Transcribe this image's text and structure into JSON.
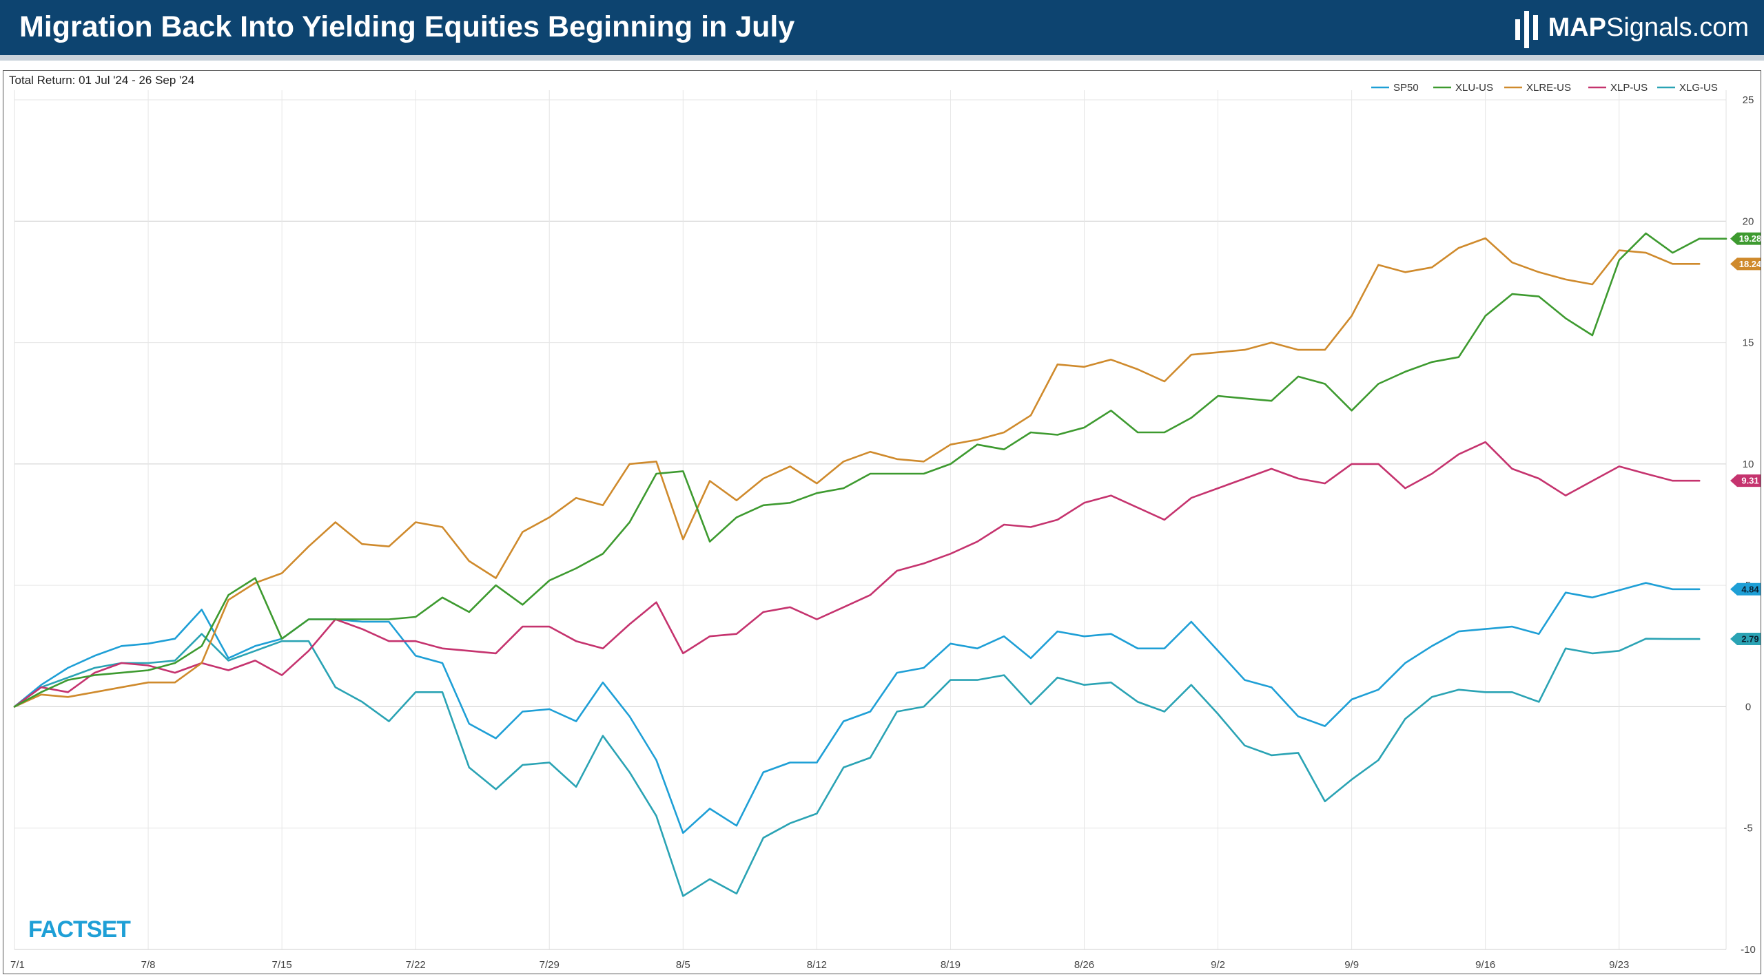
{
  "header": {
    "title": "Migration Back Into Yielding Equities Beginning in July",
    "brand_bold": "MAP",
    "brand_rest": "Signals.com"
  },
  "colors": {
    "header_bg": "#0d4470",
    "SP50": "#1e9fd6",
    "XLU-US": "#3d9a2f",
    "XLRE-US": "#cf8a2c",
    "XLP-US": "#c5336e",
    "XLG-US": "#2aa3b4"
  },
  "watermark": "FACTSET",
  "chart_data": {
    "type": "line",
    "subtitle": "Total Return: 01 Jul '24 - 26 Sep '24",
    "ylim": [
      -10,
      25
    ],
    "yticks": [
      25,
      20,
      15,
      10,
      5,
      0,
      -5,
      -10
    ],
    "xlim": [
      0,
      64
    ],
    "xtick_labels": [
      "7/1",
      "7/8",
      "7/15",
      "7/22",
      "7/29",
      "8/5",
      "8/12",
      "8/19",
      "8/26",
      "9/2",
      "9/9",
      "9/16",
      "9/23"
    ],
    "xtick_index": [
      0,
      5,
      10,
      15,
      20,
      25,
      30,
      35,
      40,
      45,
      50,
      55,
      60
    ],
    "legend_position": "top-right",
    "grid": true,
    "series": [
      {
        "name": "SP50",
        "color": "#1e9fd6",
        "last_label": "4.84",
        "values": [
          0,
          0.9,
          1.6,
          2.1,
          2.5,
          2.6,
          2.8,
          4.0,
          2.0,
          2.5,
          2.8,
          3.6,
          3.6,
          3.5,
          3.5,
          2.1,
          1.8,
          -0.7,
          -1.3,
          -0.2,
          -0.1,
          -0.6,
          1.0,
          -0.4,
          -2.2,
          -5.2,
          -4.2,
          -4.9,
          -2.7,
          -2.3,
          -2.3,
          -0.6,
          -0.2,
          1.4,
          1.6,
          2.6,
          2.4,
          2.9,
          2.0,
          3.1,
          2.9,
          3.0,
          2.4,
          2.4,
          3.5,
          2.3,
          1.1,
          0.8,
          -0.4,
          -0.8,
          0.3,
          0.7,
          1.8,
          2.5,
          3.1,
          3.2,
          3.3,
          3.0,
          4.7,
          4.5,
          4.8,
          5.1,
          4.84,
          4.84
        ]
      },
      {
        "name": "XLU-US",
        "color": "#3d9a2f",
        "last_label": "19.28",
        "values": [
          0,
          0.6,
          1.1,
          1.3,
          1.4,
          1.5,
          1.8,
          2.5,
          4.6,
          5.3,
          2.8,
          3.6,
          3.6,
          3.6,
          3.6,
          3.7,
          4.5,
          3.9,
          5.0,
          4.2,
          5.2,
          5.7,
          6.3,
          7.6,
          9.6,
          9.7,
          6.8,
          7.8,
          8.3,
          8.4,
          8.8,
          9.0,
          9.6,
          9.6,
          9.6,
          10.0,
          10.8,
          10.6,
          11.3,
          11.2,
          11.5,
          12.2,
          11.3,
          11.3,
          11.9,
          12.8,
          12.7,
          12.6,
          13.6,
          13.3,
          12.2,
          13.3,
          13.8,
          14.2,
          14.4,
          16.1,
          17.0,
          16.9,
          16.0,
          15.3,
          18.4,
          19.5,
          18.7,
          19.28,
          19.28
        ]
      },
      {
        "name": "XLRE-US",
        "color": "#cf8a2c",
        "last_label": "18.24",
        "values": [
          0,
          0.5,
          0.4,
          0.6,
          0.8,
          1.0,
          1.0,
          1.8,
          4.4,
          5.1,
          5.5,
          6.6,
          7.6,
          6.7,
          6.6,
          7.6,
          7.4,
          6.0,
          5.3,
          7.2,
          7.8,
          8.6,
          8.3,
          10.0,
          10.1,
          6.9,
          9.3,
          8.5,
          9.4,
          9.9,
          9.2,
          10.1,
          10.5,
          10.2,
          10.1,
          10.8,
          11.0,
          11.3,
          12.0,
          14.1,
          14.0,
          14.3,
          13.9,
          13.4,
          14.5,
          14.6,
          14.7,
          15.0,
          14.7,
          14.7,
          16.1,
          18.2,
          17.9,
          18.1,
          18.9,
          19.3,
          18.3,
          17.9,
          17.6,
          17.4,
          18.8,
          18.7,
          18.24,
          18.24
        ]
      },
      {
        "name": "XLP-US",
        "color": "#c5336e",
        "last_label": "9.31",
        "values": [
          0,
          0.8,
          0.6,
          1.4,
          1.8,
          1.7,
          1.4,
          1.8,
          1.5,
          1.9,
          1.3,
          2.3,
          3.6,
          3.2,
          2.7,
          2.7,
          2.4,
          2.3,
          2.2,
          3.3,
          3.3,
          2.7,
          2.4,
          3.4,
          4.3,
          2.2,
          2.9,
          3.0,
          3.9,
          4.1,
          3.6,
          4.1,
          4.6,
          5.6,
          5.9,
          6.3,
          6.8,
          7.5,
          7.4,
          7.7,
          8.4,
          8.7,
          8.2,
          7.7,
          8.6,
          9.0,
          9.4,
          9.8,
          9.4,
          9.2,
          10.0,
          10.0,
          9.0,
          9.6,
          10.4,
          10.9,
          9.8,
          9.4,
          8.7,
          9.3,
          9.9,
          9.6,
          9.31,
          9.31
        ]
      },
      {
        "name": "XLG-US",
        "color": "#2aa3b4",
        "last_label": "2.79",
        "values": [
          0,
          0.8,
          1.2,
          1.6,
          1.8,
          1.8,
          1.9,
          3.0,
          1.9,
          2.3,
          2.7,
          2.7,
          0.8,
          0.2,
          -0.6,
          0.6,
          0.6,
          -2.5,
          -3.4,
          -2.4,
          -2.3,
          -3.3,
          -1.2,
          -2.7,
          -4.5,
          -7.8,
          -7.1,
          -7.7,
          -5.4,
          -4.8,
          -4.4,
          -2.5,
          -2.1,
          -0.2,
          0.0,
          1.1,
          1.1,
          1.3,
          0.1,
          1.2,
          0.9,
          1.0,
          0.2,
          -0.2,
          0.9,
          -0.3,
          -1.6,
          -2.0,
          -1.9,
          -3.9,
          -3.0,
          -2.2,
          -0.5,
          0.4,
          0.7,
          0.6,
          0.6,
          0.2,
          2.4,
          2.2,
          2.3,
          2.8,
          2.79,
          2.79
        ]
      }
    ]
  }
}
